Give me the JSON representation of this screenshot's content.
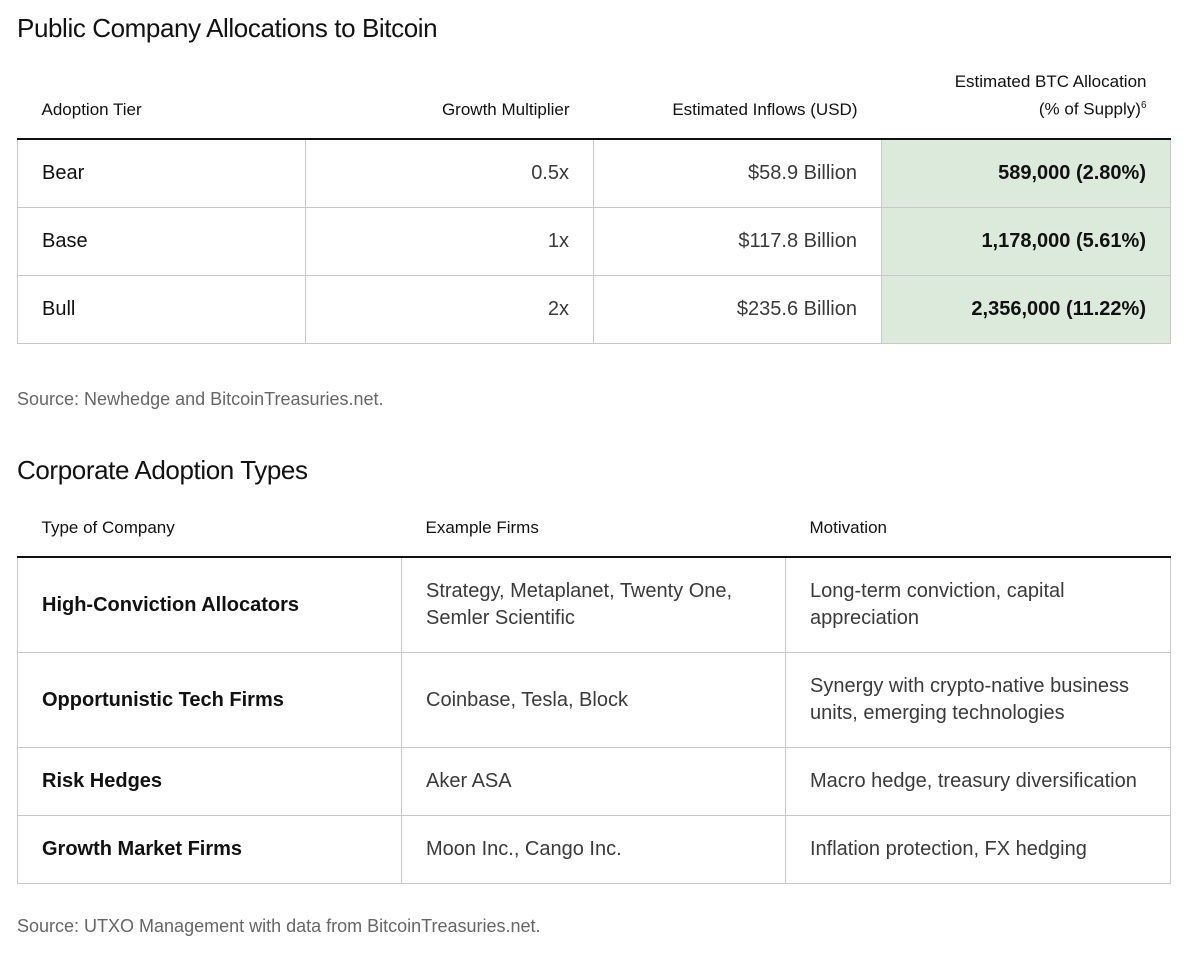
{
  "section1": {
    "title": "Public Company Allocations to Bitcoin",
    "headers": {
      "tier": "Adoption Tier",
      "multiplier": "Growth Multiplier",
      "inflows": "Estimated Inflows (USD)",
      "allocation_line1": "Estimated BTC Allocation",
      "allocation_line2": "(% of Supply)",
      "allocation_footnote": "6"
    },
    "rows": [
      {
        "tier": "Bear",
        "multiplier": "0.5x",
        "inflows": "$58.9 Billion",
        "allocation": "589,000 (2.80%)"
      },
      {
        "tier": "Base",
        "multiplier": "1x",
        "inflows": "$117.8 Billion",
        "allocation": "1,178,000 (5.61%)"
      },
      {
        "tier": "Bull",
        "multiplier": "2x",
        "inflows": "$235.6 Billion",
        "allocation": "2,356,000 (11.22%)"
      }
    ],
    "source": "Source: Newhedge and BitcoinTreasuries.net.",
    "highlight_color": "#dbeadb"
  },
  "section2": {
    "title": "Corporate Adoption Types",
    "headers": {
      "type": "Type of Company",
      "firms": "Example Firms",
      "motivation": "Motivation"
    },
    "rows": [
      {
        "type": "High-Conviction Allocators",
        "firms": "Strategy, Metaplanet, Twenty One, Semler Scientific",
        "motivation": "Long-term conviction, capital appreciation"
      },
      {
        "type": "Opportunistic Tech Firms",
        "firms": "Coinbase, Tesla, Block",
        "motivation": "Synergy with crypto-native business units, emerging technologies"
      },
      {
        "type": "Risk Hedges",
        "firms": "Aker ASA",
        "motivation": "Macro hedge, treasury diversification"
      },
      {
        "type": "Growth Market Firms",
        "firms": "Moon Inc., Cango Inc.",
        "motivation": "Inflation protection, FX hedging"
      }
    ],
    "source": "Source: UTXO Management with data from BitcoinTreasuries.net."
  }
}
